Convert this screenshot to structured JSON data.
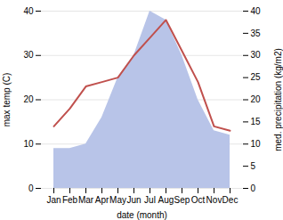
{
  "chart_data": {
    "type": "line",
    "xlabel": "date (month)",
    "ylabel": "max temp (C)",
    "y2label": "med. precipitation (kg/m2)",
    "categories": [
      "Jan",
      "Feb",
      "Mar",
      "Apr",
      "May",
      "Jun",
      "Jul",
      "Aug",
      "Sep",
      "Oct",
      "Nov",
      "Dec"
    ],
    "series": [
      {
        "type": "area",
        "axis": "y2",
        "color": "#b8c4e8",
        "values": [
          9,
          9,
          10,
          16,
          25,
          30,
          40,
          38,
          30,
          20,
          13,
          12
        ]
      },
      {
        "type": "line",
        "color": "#c0504d",
        "values": [
          14,
          18,
          23,
          24,
          25,
          30,
          34,
          38,
          31,
          24,
          14,
          13
        ]
      }
    ],
    "ylim": [
      0,
      40
    ],
    "yticks": [
      0,
      10,
      20,
      30,
      40
    ],
    "y2lim": [
      0,
      40
    ],
    "y2ticks": [
      0,
      5,
      10,
      15,
      20,
      25,
      30,
      35,
      40
    ],
    "grid": true
  }
}
